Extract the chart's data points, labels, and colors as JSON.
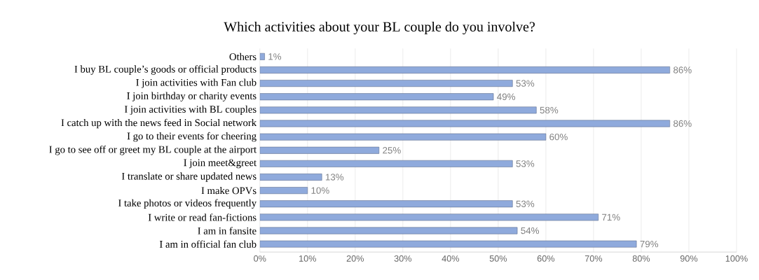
{
  "chart_data": {
    "type": "bar",
    "orientation": "horizontal",
    "title": "Which activities about your BL couple do you involve?",
    "categories": [
      "Others",
      "I buy BL couple’s goods or official products",
      "I join activities with Fan club",
      "I join birthday or charity events",
      "I join activities with BL couples",
      "I catch up with the news feed in Social network",
      "I go to their events for cheering",
      "I go to see off or greet my BL couple at the airport",
      "I join meet&greet",
      "I translate or share updated news",
      "I make OPVs",
      "I take photos or videos frequently",
      "I write or read fan-fictions",
      "I am in fansite",
      "I am in official fan club"
    ],
    "values": [
      1,
      86,
      53,
      49,
      58,
      86,
      60,
      25,
      53,
      13,
      10,
      53,
      71,
      54,
      79
    ],
    "value_labels": [
      "1%",
      "86%",
      "53%",
      "49%",
      "58%",
      "86%",
      "60%",
      "25%",
      "53%",
      "13%",
      "10%",
      "53%",
      "71%",
      "54%",
      "79%"
    ],
    "color": "#8faadc",
    "xlim": [
      0,
      100
    ],
    "xticks": [
      {
        "value": 0,
        "label": "0%"
      },
      {
        "value": 10,
        "label": "10%"
      },
      {
        "value": 20,
        "label": "20%"
      },
      {
        "value": 30,
        "label": "30%"
      },
      {
        "value": 40,
        "label": "40%"
      },
      {
        "value": 50,
        "label": "50%"
      },
      {
        "value": 60,
        "label": "60%"
      },
      {
        "value": 70,
        "label": "70%"
      },
      {
        "value": 80,
        "label": "80%"
      },
      {
        "value": 90,
        "label": "90%"
      },
      {
        "value": 100,
        "label": "100%"
      }
    ],
    "grid": "x"
  }
}
